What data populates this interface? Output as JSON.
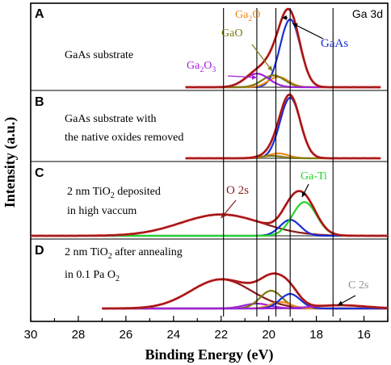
{
  "chart_data": {
    "type": "line",
    "figure_label": "Ga 3d",
    "xlabel": "Binding Energy (eV)",
    "ylabel": "Intensity (a.u.)",
    "xlim": [
      30,
      15
    ],
    "x_reversed": true,
    "x_ticks": [
      30,
      28,
      26,
      24,
      22,
      20,
      18,
      16
    ],
    "x_tick_labels": [
      "30",
      "28",
      "26",
      "24",
      "22",
      "20",
      "18",
      "16"
    ],
    "reference_lines_ev": [
      21.9,
      20.5,
      19.7,
      19.1,
      17.3
    ],
    "panels": [
      {
        "id": "A",
        "label": "A",
        "description_lines": [
          "GaAs substrate"
        ],
        "baseline_range": [
          23.5,
          15.3
        ],
        "components": [
          {
            "name": "GaAs",
            "center": 19.1,
            "fwhm": 1.0,
            "height": 80,
            "color": "#1a2fd4"
          },
          {
            "name": "Ga2O",
            "center": 19.6,
            "fwhm": 1.0,
            "height": 12,
            "color": "#f08a1e"
          },
          {
            "name": "GaO",
            "center": 19.8,
            "fwhm": 1.1,
            "height": 14,
            "color": "#7d7a12"
          },
          {
            "name": "Ga2O3",
            "center": 20.5,
            "fwhm": 1.2,
            "height": 16,
            "color": "#a022d8"
          }
        ],
        "envelope_color": "#d31c1c",
        "annotations": [
          {
            "text_main": "Ga",
            "sub": "2",
            "text_after": "O",
            "points_to_ev": 19.6,
            "color": "#f08a1e"
          },
          {
            "text_main": "GaO",
            "sub": "",
            "text_after": "",
            "points_to_ev": 19.8,
            "color": "#7d7a12"
          },
          {
            "text_main": "Ga",
            "sub": "2",
            "text_after": "O",
            "sub2": "3",
            "points_to_ev": 20.5,
            "color": "#a022d8"
          },
          {
            "text_main": "GaAs",
            "sub": "",
            "text_after": "",
            "points_to_ev": 19.1,
            "color": "#1a2fd4"
          }
        ]
      },
      {
        "id": "B",
        "label": "B",
        "description_lines": [
          "GaAs substrate with",
          "the native oxides removed"
        ],
        "baseline_range": [
          23.5,
          15.3
        ],
        "components": [
          {
            "name": "GaAs",
            "center": 19.1,
            "fwhm": 1.0,
            "height": 75,
            "color": "#1a2fd4"
          },
          {
            "name": "Ga2O",
            "center": 19.6,
            "fwhm": 1.0,
            "height": 6,
            "color": "#f08a1e"
          },
          {
            "name": "GaO",
            "center": 19.9,
            "fwhm": 1.1,
            "height": 3,
            "color": "#7d7a12"
          }
        ],
        "envelope_color": "#d31c1c",
        "annotations": []
      },
      {
        "id": "C",
        "label": "C",
        "description_lines": [
          "2 nm TiO2 deposited",
          "in high vaccum"
        ],
        "baseline_range": [
          30,
          15
        ],
        "components": [
          {
            "name": "O 2s",
            "center": 22.0,
            "fwhm": 4.0,
            "height": 24,
            "color": "#8b1a1a"
          },
          {
            "name": "GaAs",
            "center": 19.1,
            "fwhm": 1.0,
            "height": 18,
            "color": "#1a2fd4"
          },
          {
            "name": "Ga-Ti",
            "center": 18.5,
            "fwhm": 1.2,
            "height": 38,
            "color": "#22d42a"
          }
        ],
        "envelope_color": "#d31c1c",
        "annotations": [
          {
            "text_main": "O 2s",
            "sub": "",
            "text_after": "",
            "points_to_ev": 22.0,
            "color": "#8b1a1a"
          },
          {
            "text_main": "Ga-Ti",
            "sub": "",
            "text_after": "",
            "points_to_ev": 18.5,
            "color": "#22d42a"
          }
        ]
      },
      {
        "id": "D",
        "label": "D",
        "description_lines": [
          "2 nm TiO2 after annealing",
          "in 0.1 Pa O2"
        ],
        "baseline_range": [
          27,
          15
        ],
        "components": [
          {
            "name": "O 2s",
            "center": 22.0,
            "fwhm": 3.0,
            "height": 36,
            "color": "#8b1a1a"
          },
          {
            "name": "Ga2O3",
            "center": 20.5,
            "fwhm": 1.3,
            "height": 6,
            "color": "#a022d8"
          },
          {
            "name": "GaO",
            "center": 19.9,
            "fwhm": 1.1,
            "height": 22,
            "color": "#7d7a12"
          },
          {
            "name": "Ga2O",
            "center": 19.5,
            "fwhm": 1.0,
            "height": 8,
            "color": "#f08a1e"
          },
          {
            "name": "GaAs",
            "center": 19.1,
            "fwhm": 1.0,
            "height": 18,
            "color": "#1a2fd4"
          },
          {
            "name": "C 2s",
            "center": 17.0,
            "fwhm": 2.5,
            "height": 4,
            "color": "#a022d8"
          }
        ],
        "envelope_color": "#d31c1c",
        "annotations": [
          {
            "text_main": "C 2s",
            "sub": "",
            "text_after": "",
            "points_to_ev": 17.0,
            "color": "#909090"
          }
        ]
      }
    ]
  }
}
